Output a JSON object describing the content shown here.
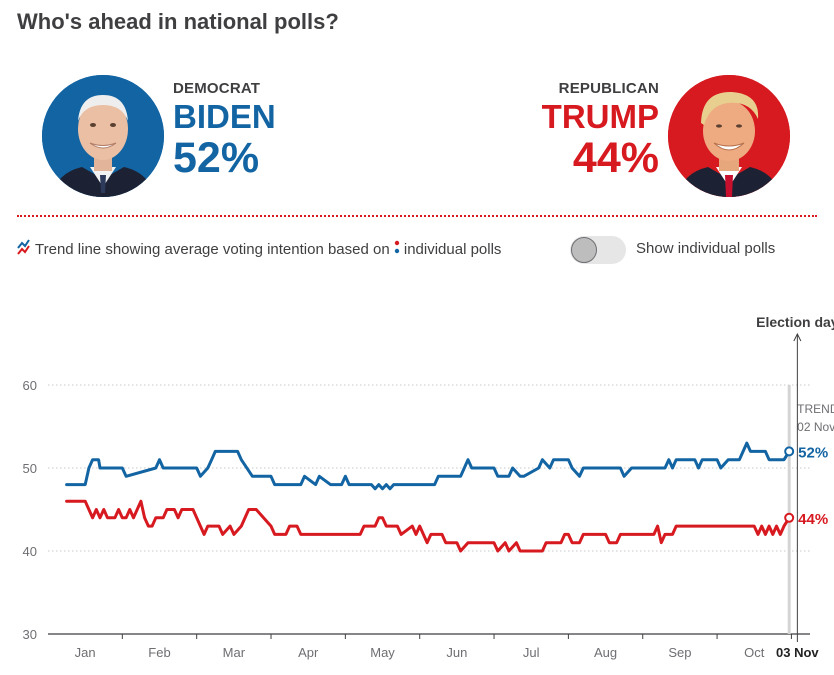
{
  "title": "Who's ahead in national polls?",
  "candidates": {
    "dem": {
      "party": "DEMOCRAT",
      "name": "BIDEN",
      "pct": "52%",
      "color": "#1264a3"
    },
    "rep": {
      "party": "REPUBLICAN",
      "name": "TRUMP",
      "pct": "44%",
      "color": "#d71920"
    }
  },
  "legend": {
    "text1": "Trend line showing average voting intention based on",
    "text2": "individual polls"
  },
  "toggle": {
    "label": "Show individual polls",
    "on": false
  },
  "chart_data": {
    "type": "line",
    "title": "",
    "xlabel": "",
    "ylabel": "",
    "ylim": [
      30,
      60
    ],
    "xlim": [
      0,
      10.25
    ],
    "y_ticks": [
      30,
      40,
      50,
      60
    ],
    "x_ticks": [
      {
        "label": "Jan",
        "x": 0.5
      },
      {
        "label": "Feb",
        "x": 1.5
      },
      {
        "label": "Mar",
        "x": 2.5
      },
      {
        "label": "Apr",
        "x": 3.5
      },
      {
        "label": "May",
        "x": 4.5
      },
      {
        "label": "Jun",
        "x": 5.5
      },
      {
        "label": "Jul",
        "x": 6.5
      },
      {
        "label": "Aug",
        "x": 7.5
      },
      {
        "label": "Sep",
        "x": 8.5
      },
      {
        "label": "Oct",
        "x": 9.5
      },
      {
        "label": "03 Nov",
        "x": 10.08,
        "bold": true
      }
    ],
    "election_day": {
      "label": "Election day",
      "x": 10.08
    },
    "trend_marker": {
      "label1": "TREND",
      "label2": "02 Nov",
      "x": 9.97
    },
    "series": [
      {
        "name": "Biden",
        "color": "#1264a3",
        "end_label": "52%",
        "x": [
          0.25,
          0.5,
          0.55,
          0.6,
          0.68,
          0.7,
          1.0,
          1.05,
          1.45,
          1.5,
          1.55,
          2.0,
          2.05,
          2.15,
          2.2,
          2.25,
          2.3,
          2.55,
          2.6,
          2.75,
          2.8,
          3.0,
          3.05,
          3.4,
          3.45,
          3.6,
          3.65,
          3.8,
          3.85,
          3.95,
          4.0,
          4.05,
          4.1,
          4.35,
          4.4,
          4.45,
          4.5,
          4.55,
          4.6,
          4.65,
          4.7,
          5.2,
          5.25,
          5.55,
          5.6,
          5.65,
          5.7,
          6.0,
          6.05,
          6.2,
          6.25,
          6.35,
          6.4,
          6.6,
          6.65,
          6.75,
          6.8,
          7.0,
          7.05,
          7.15,
          7.2,
          7.7,
          7.75,
          7.85,
          7.9,
          8.3,
          8.35,
          8.4,
          8.45,
          8.7,
          8.75,
          8.8,
          8.85,
          9.0,
          9.05,
          9.15,
          9.2,
          9.3,
          9.35,
          9.4,
          9.45,
          9.65,
          9.7,
          9.9,
          9.97
        ],
        "values": [
          48,
          48,
          50,
          51,
          51,
          50,
          50,
          49,
          50,
          51,
          50,
          50,
          49,
          50,
          51,
          52,
          52,
          52,
          51,
          49,
          49,
          49,
          48,
          48,
          49,
          48,
          49,
          48,
          48,
          48,
          49,
          48,
          48,
          48,
          47.5,
          48,
          47.5,
          48,
          47.5,
          48,
          48,
          48,
          49,
          49,
          50,
          51,
          50,
          50,
          49,
          49,
          50,
          49,
          49,
          50,
          51,
          50,
          51,
          51,
          50,
          49,
          50,
          50,
          49,
          50,
          50,
          50,
          51,
          50,
          51,
          51,
          50,
          51,
          51,
          51,
          50,
          51,
          51,
          51,
          52,
          53,
          52,
          52,
          51,
          51,
          52
        ]
      },
      {
        "name": "Trump",
        "color": "#d71920",
        "end_label": "44%",
        "x": [
          0.25,
          0.5,
          0.55,
          0.6,
          0.65,
          0.7,
          0.75,
          0.8,
          0.9,
          0.95,
          1.0,
          1.05,
          1.1,
          1.15,
          1.2,
          1.25,
          1.3,
          1.35,
          1.4,
          1.45,
          1.5,
          1.55,
          1.6,
          1.7,
          1.75,
          1.8,
          1.95,
          2.0,
          2.05,
          2.1,
          2.15,
          2.3,
          2.35,
          2.45,
          2.5,
          2.6,
          2.7,
          2.75,
          2.8,
          3.0,
          3.05,
          3.2,
          3.25,
          3.35,
          3.4,
          4.2,
          4.25,
          4.4,
          4.45,
          4.5,
          4.55,
          4.7,
          4.75,
          4.9,
          4.95,
          5.0,
          5.05,
          5.1,
          5.15,
          5.3,
          5.35,
          5.5,
          5.55,
          5.65,
          5.7,
          6.0,
          6.05,
          6.15,
          6.2,
          6.3,
          6.35,
          6.65,
          6.7,
          6.9,
          6.95,
          7.0,
          7.05,
          7.15,
          7.2,
          7.5,
          7.55,
          7.65,
          7.7,
          7.85,
          7.9,
          8.15,
          8.2,
          8.25,
          8.3,
          8.4,
          8.45,
          8.5,
          8.55,
          9.5,
          9.55,
          9.6,
          9.65,
          9.7,
          9.75,
          9.8,
          9.85,
          9.9,
          9.97
        ],
        "values": [
          46,
          46,
          45,
          44,
          45,
          44,
          45,
          44,
          44,
          45,
          44,
          44,
          45,
          44,
          45,
          46,
          44,
          43,
          43,
          44,
          44,
          44,
          45,
          45,
          44,
          45,
          45,
          44,
          43,
          42,
          43,
          43,
          42,
          43,
          42,
          43,
          45,
          45,
          45,
          43,
          42,
          42,
          43,
          43,
          42,
          42,
          43,
          43,
          44,
          44,
          43,
          43,
          42,
          43,
          42,
          43,
          42,
          41,
          42,
          42,
          41,
          41,
          40,
          41,
          41,
          41,
          40,
          41,
          40,
          41,
          40,
          40,
          41,
          41,
          42,
          42,
          41,
          41,
          42,
          42,
          41,
          41,
          42,
          42,
          42,
          42,
          43,
          41,
          42,
          42,
          43,
          43,
          43,
          43,
          42,
          43,
          42,
          43,
          42,
          43,
          42,
          43,
          44
        ]
      }
    ]
  }
}
